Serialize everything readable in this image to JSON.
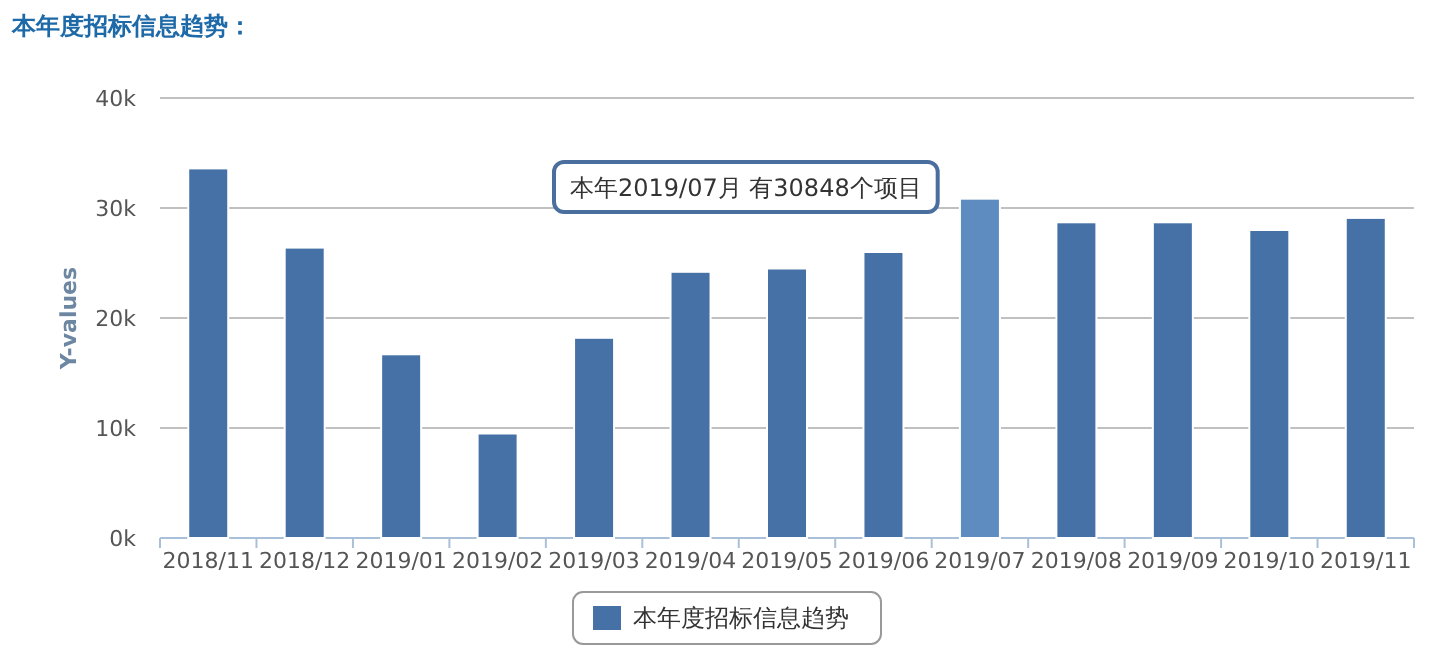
{
  "chart_data": {
    "type": "bar",
    "title": "本年度招标信息趋势：",
    "ylabel": "Y-values",
    "categories": [
      "2018/11",
      "2018/12",
      "2019/01",
      "2019/02",
      "2019/03",
      "2019/04",
      "2019/05",
      "2019/06",
      "2019/07",
      "2019/08",
      "2019/09",
      "2019/10",
      "2019/11"
    ],
    "series": [
      {
        "name": "本年度招标信息趋势",
        "color": "#4571a6",
        "colors": [
          "#4571a6",
          "#4571a6",
          "#4571a6",
          "#4571a6",
          "#4571a6",
          "#4571a6",
          "#4571a6",
          "#4571a6",
          "#5f8cc0",
          "#4571a6",
          "#4571a6",
          "#4571a6",
          "#4571a6"
        ],
        "values": [
          33600,
          26400,
          16700,
          9500,
          18200,
          24200,
          24500,
          26000,
          30848,
          28700,
          28700,
          28000,
          29100
        ]
      }
    ],
    "ylim": [
      0,
      40000
    ],
    "yticks": [
      {
        "value": 0,
        "label": "0k"
      },
      {
        "value": 10000,
        "label": "10k"
      },
      {
        "value": 20000,
        "label": "20k"
      },
      {
        "value": 30000,
        "label": "30k"
      },
      {
        "value": 40000,
        "label": "40k"
      }
    ],
    "grid": "y",
    "legend": "bottom",
    "annotations": [
      "本年2019/07月 有30848个项目"
    ]
  }
}
